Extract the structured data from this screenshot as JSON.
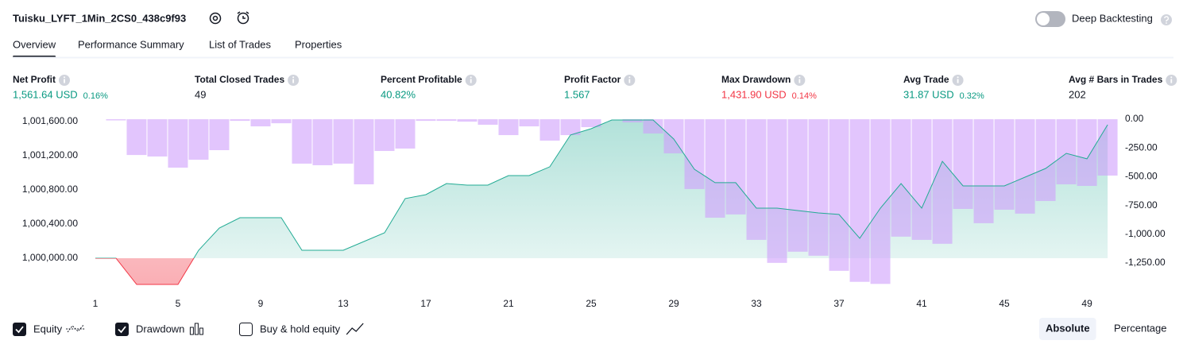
{
  "header": {
    "title": "Tuisku_LYFT_1Min_2CS0_438c9f93",
    "deep_backtesting": "Deep Backtesting",
    "deep_backtesting_on": false
  },
  "tabs": [
    "Overview",
    "Performance Summary",
    "List of Trades",
    "Properties"
  ],
  "active_tab": 0,
  "metrics": [
    {
      "label": "Net Profit",
      "value": "1,561.64 USD",
      "percent": "0.16%",
      "color": "#089981"
    },
    {
      "label": "Total Closed Trades",
      "value": "49",
      "color": "#131722"
    },
    {
      "label": "Percent Profitable",
      "value": "40.82%",
      "color": "#089981"
    },
    {
      "label": "Profit Factor",
      "value": "1.567",
      "color": "#089981"
    },
    {
      "label": "Max Drawdown",
      "value": "1,431.90 USD",
      "percent": "0.14%",
      "color": "#f23645"
    },
    {
      "label": "Avg Trade",
      "value": "31.87 USD",
      "percent": "0.32%",
      "color": "#089981"
    },
    {
      "label": "Avg # Bars in Trades",
      "value": "202",
      "color": "#131722"
    }
  ],
  "chart_data": {
    "type": "equity-drawdown",
    "x": [
      1,
      2,
      3,
      4,
      5,
      6,
      7,
      8,
      9,
      10,
      11,
      12,
      13,
      14,
      15,
      16,
      17,
      18,
      19,
      20,
      21,
      22,
      23,
      24,
      25,
      26,
      27,
      28,
      29,
      30,
      31,
      32,
      33,
      34,
      35,
      36,
      37,
      38,
      39,
      40,
      41,
      42,
      43,
      44,
      45,
      46,
      47,
      48,
      49,
      50
    ],
    "xlim": [
      0.54,
      50.42
    ],
    "xticks": [
      1,
      5,
      9,
      13,
      17,
      21,
      25,
      29,
      33,
      37,
      41,
      45,
      49
    ],
    "ylim": [
      999628,
      1001674
    ],
    "yticks": [
      {
        "value": 1000000,
        "label": "1,000,000.00"
      },
      {
        "value": 1000400,
        "label": "1,000,400.00"
      },
      {
        "value": 1000800,
        "label": "1,000,800.00"
      },
      {
        "value": 1001200,
        "label": "1,001,200.00"
      },
      {
        "value": 1001600,
        "label": "1,001,600.00"
      }
    ],
    "y2lim": [
      -1485,
      35
    ],
    "y2ticks": [
      {
        "value": 0,
        "label": "0.00"
      },
      {
        "value": -250,
        "label": "-250.00"
      },
      {
        "value": -500,
        "label": "-500.00"
      },
      {
        "value": -750,
        "label": "-750.00"
      },
      {
        "value": -1000,
        "label": "-1,000.00"
      },
      {
        "value": -1250,
        "label": "-1,250.00"
      }
    ],
    "grid": false,
    "series": [
      {
        "name": "Equity",
        "color": "#22ab94",
        "negative_color": "#f23645",
        "checked": true,
        "values": [
          1000000,
          1000000,
          999693,
          999693,
          999693,
          1000093,
          1000353,
          1000474,
          1000474,
          1000474,
          1000093,
          1000093,
          1000093,
          1000195,
          1000298,
          1000698,
          1000744,
          1000874,
          1000856,
          1000856,
          1000967,
          1000967,
          1001070,
          1001442,
          1001516,
          1001618,
          1001618,
          1001618,
          1001395,
          1001042,
          1000884,
          1000884,
          1000586,
          1000586,
          1000558,
          1000530,
          1000512,
          1000233,
          1000586,
          1000874,
          1000586,
          1001135,
          1000846,
          1000846,
          1000846,
          1000949,
          1001051,
          1001228,
          1001163,
          1001562
        ]
      },
      {
        "name": "Drawdown",
        "color": "#ce9ffc",
        "axis": "y2",
        "checked": true,
        "values": [
          0,
          -10,
          -311,
          -324,
          -421,
          -352,
          -269,
          -14,
          -62,
          -35,
          -386,
          -400,
          -386,
          -566,
          -276,
          -255,
          -14,
          -14,
          -21,
          -48,
          -138,
          -62,
          -186,
          -138,
          -69,
          0,
          -28,
          -124,
          -297,
          -607,
          -856,
          -828,
          -1049,
          -1249,
          -1152,
          -1187,
          -1318,
          -1414,
          -1432,
          -1021,
          -1049,
          -1083,
          -780,
          -904,
          -787,
          -821,
          -711,
          -566,
          -580,
          -490
        ]
      }
    ]
  },
  "footer": {
    "buy_hold": {
      "label": "Buy & hold equity",
      "checked": false
    },
    "modes": [
      "Absolute",
      "Percentage"
    ],
    "active_mode": 0
  }
}
